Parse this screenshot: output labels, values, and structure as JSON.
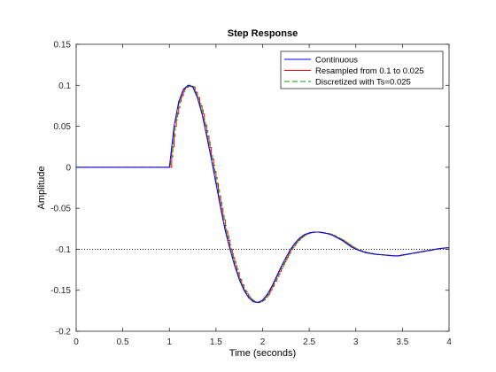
{
  "colors": {
    "continuous": "#0000ff",
    "resampled": "#ff0000",
    "discretized": "#00aa00",
    "axes": "#262626",
    "reference_line": "#000000"
  },
  "chart_data": {
    "type": "line",
    "title": "Step Response",
    "xlabel": "Time (seconds)",
    "ylabel": "Amplitude",
    "xlim": [
      0,
      4
    ],
    "ylim": [
      -0.2,
      0.15
    ],
    "xticks": [
      0,
      0.5,
      1,
      1.5,
      2,
      2.5,
      3,
      3.5,
      4
    ],
    "xtick_labels": [
      "0",
      "0.5",
      "1",
      "1.5",
      "2",
      "2.5",
      "3",
      "3.5",
      "4"
    ],
    "yticks": [
      -0.2,
      -0.15,
      -0.1,
      -0.05,
      0,
      0.05,
      0.1,
      0.15
    ],
    "ytick_labels": [
      "-0.2",
      "-0.15",
      "-0.1",
      "-0.05",
      "0",
      "0.05",
      "0.1",
      "0.15"
    ],
    "grid": false,
    "legend_position": "top-right",
    "reference_line": {
      "y": -0.1,
      "style": "dotted"
    },
    "series": [
      {
        "name": "Continuous",
        "style": "solid",
        "x": [
          0,
          1.0,
          1.05,
          1.1,
          1.15,
          1.2,
          1.25,
          1.3,
          1.35,
          1.4,
          1.45,
          1.5,
          1.55,
          1.6,
          1.65,
          1.7,
          1.75,
          1.8,
          1.85,
          1.9,
          1.95,
          2.0,
          2.05,
          2.1,
          2.15,
          2.2,
          2.25,
          2.3,
          2.35,
          2.4,
          2.45,
          2.5,
          2.55,
          2.6,
          2.65,
          2.7,
          2.75,
          2.8,
          2.85,
          2.9,
          2.95,
          3.0,
          3.1,
          3.2,
          3.3,
          3.4,
          3.45,
          3.5,
          3.6,
          3.7,
          3.8,
          3.9,
          4.0
        ],
        "y": [
          0,
          0,
          0.05,
          0.08,
          0.095,
          0.1,
          0.098,
          0.085,
          0.065,
          0.038,
          0.01,
          -0.02,
          -0.05,
          -0.078,
          -0.1,
          -0.12,
          -0.137,
          -0.15,
          -0.159,
          -0.164,
          -0.165,
          -0.162,
          -0.155,
          -0.145,
          -0.133,
          -0.121,
          -0.11,
          -0.1,
          -0.092,
          -0.086,
          -0.082,
          -0.08,
          -0.079,
          -0.079,
          -0.08,
          -0.081,
          -0.083,
          -0.086,
          -0.089,
          -0.093,
          -0.097,
          -0.1,
          -0.104,
          -0.106,
          -0.107,
          -0.108,
          -0.108,
          -0.107,
          -0.105,
          -0.103,
          -0.101,
          -0.099,
          -0.098
        ]
      },
      {
        "name": "Resampled from 0.1 to 0.025",
        "style": "staircase",
        "dt": 0.025
      },
      {
        "name": "Discretized with Ts=0.025",
        "style": "dashed",
        "dt": 0.025
      }
    ]
  }
}
